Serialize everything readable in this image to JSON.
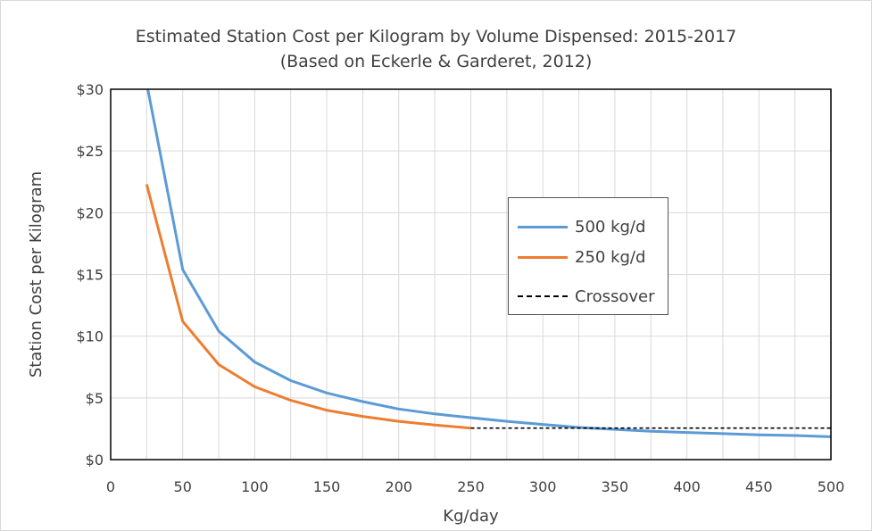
{
  "chart_data": {
    "type": "line",
    "title": "Estimated Station Cost per Kilogram by Volume Dispensed: 2015-2017",
    "subtitle": "(Based on Eckerle & Garderet, 2012)",
    "xlabel": "Kg/day",
    "ylabel": "Station Cost per Kilogram",
    "xlim": [
      0,
      500
    ],
    "ylim": [
      0,
      30
    ],
    "x_ticks": [
      0,
      50,
      100,
      150,
      200,
      250,
      300,
      350,
      400,
      450,
      500
    ],
    "x_tick_labels": [
      "0",
      "50",
      "100",
      "150",
      "200",
      "250",
      "300",
      "350",
      "400",
      "450",
      "500"
    ],
    "y_ticks": [
      0,
      5,
      10,
      15,
      20,
      25,
      30
    ],
    "y_tick_labels": [
      "$0",
      "$5",
      "$10",
      "$15",
      "$20",
      "$25",
      "$30"
    ],
    "grid": true,
    "legend_position": "center-right",
    "series": [
      {
        "name": "500 kg/d",
        "color": "#5b9bd5",
        "style": "solid",
        "x": [
          25,
          50,
          75,
          100,
          125,
          150,
          175,
          200,
          225,
          250,
          275,
          300,
          325,
          350,
          375,
          400,
          425,
          450,
          475,
          500
        ],
        "y": [
          30.5,
          15.4,
          10.4,
          7.9,
          6.4,
          5.4,
          4.7,
          4.1,
          3.7,
          3.4,
          3.1,
          2.85,
          2.6,
          2.45,
          2.3,
          2.2,
          2.1,
          2.0,
          1.95,
          1.85
        ]
      },
      {
        "name": "250 kg/d",
        "color": "#ed7d31",
        "style": "solid",
        "x": [
          25,
          50,
          75,
          100,
          125,
          150,
          175,
          200,
          225,
          250
        ],
        "y": [
          22.3,
          11.2,
          7.7,
          5.9,
          4.8,
          4.0,
          3.5,
          3.1,
          2.8,
          2.55
        ]
      },
      {
        "name": "Crossover",
        "color": "#000000",
        "style": "dashed",
        "x": [
          250,
          500
        ],
        "y": [
          2.55,
          2.55
        ]
      }
    ]
  }
}
